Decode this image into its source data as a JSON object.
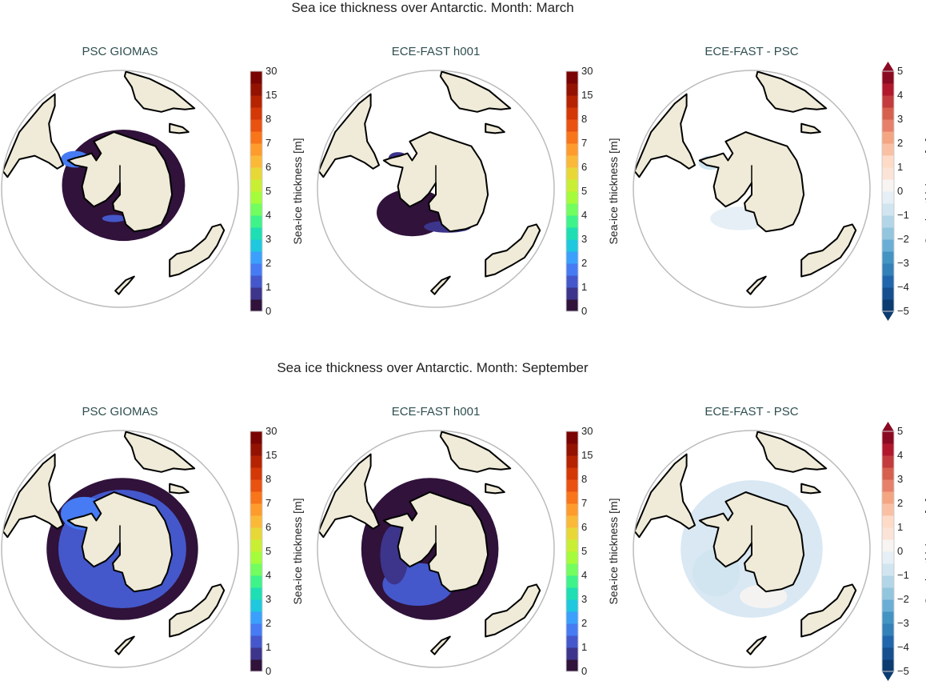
{
  "rows": [
    {
      "title": "Sea ice thickness over Antarctic. Month: March",
      "month": "March",
      "panels": [
        {
          "title": "PSC GIOMAS",
          "kind": "abs",
          "ice": "march_psc"
        },
        {
          "title": "ECE-FAST h001",
          "kind": "abs",
          "ice": "march_ece"
        },
        {
          "title": "ECE-FAST -  PSC",
          "kind": "diff",
          "ice": "march_diff"
        }
      ]
    },
    {
      "title": "Sea ice thickness over Antarctic. Month: September",
      "month": "September",
      "panels": [
        {
          "title": "PSC GIOMAS",
          "kind": "abs",
          "ice": "sep_psc"
        },
        {
          "title": "ECE-FAST h001",
          "kind": "abs",
          "ice": "sep_ece"
        },
        {
          "title": "ECE-FAST -  PSC",
          "kind": "diff",
          "ice": "sep_diff"
        }
      ]
    }
  ],
  "colorbars": {
    "abs": {
      "label": "Sea-ice thickness [m]",
      "ticks": [
        "0",
        "1",
        "2",
        "3",
        "4",
        "5",
        "6",
        "7",
        "8",
        "15",
        "30"
      ],
      "extend": "neither",
      "colors": [
        "#30123b",
        "#3d358b",
        "#4458cb",
        "#467bf4",
        "#3aa0fc",
        "#1fc8de",
        "#1ddfb3",
        "#3ef38a",
        "#72fe5e",
        "#a4fc3b",
        "#c9ef34",
        "#e7d838",
        "#fbb938",
        "#fe9b2d",
        "#f8751a",
        "#e95210",
        "#d33806",
        "#b52303",
        "#931202",
        "#7a0403"
      ]
    },
    "diff": {
      "label": "Sea-ice thickness [m]",
      "ticks": [
        "−5",
        "−4",
        "−3",
        "−2",
        "−1",
        "0",
        "1",
        "2",
        "3",
        "4",
        "5"
      ],
      "extend": "both",
      "colors": [
        "#0b3b70",
        "#154f8f",
        "#2166ac",
        "#3480b9",
        "#4393c3",
        "#6aaed6",
        "#92c5de",
        "#b2d6e8",
        "#d1e5f0",
        "#e6eff6",
        "#f7f4f2",
        "#fbe3d7",
        "#fddbc7",
        "#f9c0a4",
        "#f4a582",
        "#e7806a",
        "#d6604d",
        "#c33b3c",
        "#b2182b",
        "#8b0a23"
      ]
    }
  },
  "colors": {
    "land": "#efebd8",
    "coast": "#000000",
    "frame": "#bbbbbb"
  }
}
